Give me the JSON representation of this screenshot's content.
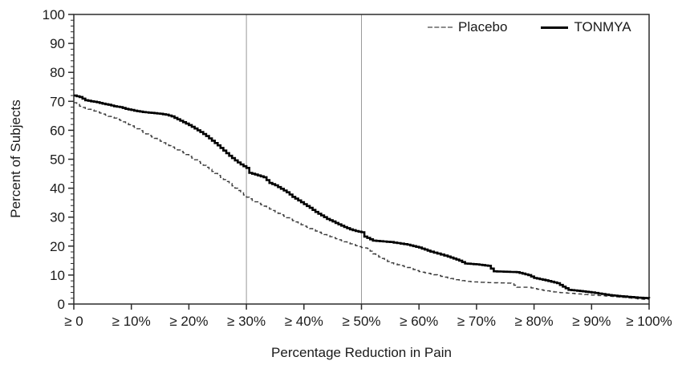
{
  "chart_data": {
    "type": "line",
    "subtype": "step-cdf",
    "title": "",
    "xlabel": "Percentage Reduction in Pain",
    "ylabel": "Percent of Subjects",
    "xlim": [
      0,
      100
    ],
    "ylim": [
      0,
      100
    ],
    "grid": "off",
    "legend_position": "top-right-inside",
    "x_ticks": [
      {
        "value": 0,
        "label": "≥ 0"
      },
      {
        "value": 10,
        "label": "≥ 10%"
      },
      {
        "value": 20,
        "label": "≥ 20%"
      },
      {
        "value": 30,
        "label": "≥ 30%"
      },
      {
        "value": 40,
        "label": "≥ 40%"
      },
      {
        "value": 50,
        "label": "≥ 50%"
      },
      {
        "value": 60,
        "label": "≥ 60%"
      },
      {
        "value": 70,
        "label": "≥ 70%"
      },
      {
        "value": 80,
        "label": "≥ 80%"
      },
      {
        "value": 90,
        "label": "≥ 90%"
      },
      {
        "value": 100,
        "label": "≥ 100%"
      }
    ],
    "y_ticks": [
      0,
      10,
      20,
      30,
      40,
      50,
      60,
      70,
      80,
      90,
      100
    ],
    "y_minor_tick_step": 2,
    "reference_lines_x": [
      30,
      50
    ],
    "colors": {
      "frame": "#2b2b2b",
      "tick": "#2b2b2b",
      "text": "#1a1a1a",
      "reference_line": "#9a9a9a",
      "placebo_line": "#3a3a3a",
      "placebo_legend_sample": "#8c8c8c",
      "tonmya_line": "#000000"
    },
    "series": [
      {
        "name": "Placebo",
        "style": "dashed",
        "width": 1.4,
        "color": "#3a3a3a",
        "points": [
          [
            0,
            69.5
          ],
          [
            1,
            68.3
          ],
          [
            2,
            67.5
          ],
          [
            3,
            67
          ],
          [
            4,
            66.3
          ],
          [
            5,
            65.6
          ],
          [
            6,
            64.8
          ],
          [
            7,
            64.2
          ],
          [
            8,
            63.4
          ],
          [
            9,
            62.4
          ],
          [
            10,
            61.5
          ],
          [
            11,
            60.5
          ],
          [
            12,
            59.3
          ],
          [
            13,
            58.2
          ],
          [
            14,
            57.2
          ],
          [
            15,
            56.2
          ],
          [
            16,
            55.2
          ],
          [
            17,
            54.2
          ],
          [
            18,
            53.2
          ],
          [
            19,
            52.2
          ],
          [
            20,
            51
          ],
          [
            21,
            49.8
          ],
          [
            22,
            48.6
          ],
          [
            23,
            47.2
          ],
          [
            24,
            45.8
          ],
          [
            25,
            44.4
          ],
          [
            26,
            43
          ],
          [
            27,
            41.6
          ],
          [
            28,
            40
          ],
          [
            29,
            38.4
          ],
          [
            30,
            36.9
          ],
          [
            31,
            35.8
          ],
          [
            32,
            34.8
          ],
          [
            34,
            32.8
          ],
          [
            36,
            30.8
          ],
          [
            38,
            28.8
          ],
          [
            40,
            26.9
          ],
          [
            42,
            25.2
          ],
          [
            44,
            23.6
          ],
          [
            46,
            22.2
          ],
          [
            48,
            20.8
          ],
          [
            50,
            19.5
          ],
          [
            51,
            19.2
          ],
          [
            52,
            17.3
          ],
          [
            54,
            15.2
          ],
          [
            55,
            14.2
          ],
          [
            58,
            12.6
          ],
          [
            60,
            11.2
          ],
          [
            62,
            10.4
          ],
          [
            65,
            9
          ],
          [
            67,
            8.2
          ],
          [
            69,
            7.7
          ],
          [
            72,
            7.4
          ],
          [
            76,
            7.2
          ],
          [
            77,
            5.8
          ],
          [
            79,
            5.8
          ],
          [
            81,
            4.9
          ],
          [
            84,
            4
          ],
          [
            87,
            3.6
          ],
          [
            90,
            3.1
          ],
          [
            93,
            2.7
          ],
          [
            96,
            2.2
          ],
          [
            98,
            1.8
          ],
          [
            100,
            1.5
          ]
        ]
      },
      {
        "name": "TONMYA",
        "style": "solid",
        "width": 2.6,
        "color": "#000000",
        "points": [
          [
            0,
            72
          ],
          [
            1,
            71.5
          ],
          [
            2,
            70.4
          ],
          [
            3,
            70
          ],
          [
            4,
            69.7
          ],
          [
            5,
            69.2
          ],
          [
            6,
            68.8
          ],
          [
            7,
            68.3
          ],
          [
            8,
            68
          ],
          [
            9,
            67.4
          ],
          [
            10,
            67
          ],
          [
            11,
            66.6
          ],
          [
            12,
            66.3
          ],
          [
            13,
            66.1
          ],
          [
            14,
            65.9
          ],
          [
            15,
            65.7
          ],
          [
            16,
            65.4
          ],
          [
            17,
            64.8
          ],
          [
            18,
            63.8
          ],
          [
            19,
            62.8
          ],
          [
            20,
            61.8
          ],
          [
            21,
            60.6
          ],
          [
            22,
            59.4
          ],
          [
            23,
            58
          ],
          [
            24,
            56.4
          ],
          [
            25,
            54.8
          ],
          [
            26,
            53
          ],
          [
            27,
            51.2
          ],
          [
            28,
            49.6
          ],
          [
            29,
            48.2
          ],
          [
            30,
            47
          ],
          [
            30.5,
            45.3
          ],
          [
            31,
            45
          ],
          [
            32,
            44.4
          ],
          [
            33,
            43.8
          ],
          [
            34,
            41.8
          ],
          [
            35,
            41
          ],
          [
            36,
            39.8
          ],
          [
            37,
            38.6
          ],
          [
            38,
            37
          ],
          [
            39,
            35.8
          ],
          [
            40,
            34.5
          ],
          [
            41,
            33.2
          ],
          [
            42,
            31.8
          ],
          [
            43,
            30.6
          ],
          [
            44,
            29.4
          ],
          [
            45,
            28.5
          ],
          [
            46,
            27.5
          ],
          [
            47,
            26.6
          ],
          [
            48,
            25.8
          ],
          [
            49,
            25.2
          ],
          [
            50,
            24.8
          ],
          [
            50.5,
            23.3
          ],
          [
            52,
            21.9
          ],
          [
            55,
            21.4
          ],
          [
            58,
            20.5
          ],
          [
            60,
            19.5
          ],
          [
            62,
            18.1
          ],
          [
            65,
            16.4
          ],
          [
            67,
            15
          ],
          [
            68,
            14
          ],
          [
            70,
            13.7
          ],
          [
            72,
            13.2
          ],
          [
            73,
            11.3
          ],
          [
            77,
            11
          ],
          [
            79,
            10
          ],
          [
            80,
            9
          ],
          [
            82,
            8.2
          ],
          [
            84,
            7.2
          ],
          [
            85,
            6
          ],
          [
            86,
            4.9
          ],
          [
            88,
            4.5
          ],
          [
            90,
            4
          ],
          [
            93,
            3.1
          ],
          [
            95,
            2.7
          ],
          [
            98,
            2.2
          ],
          [
            100,
            2
          ]
        ]
      }
    ]
  },
  "legend": {
    "placebo_label": "Placebo",
    "tonmya_label": "TONMYA"
  }
}
